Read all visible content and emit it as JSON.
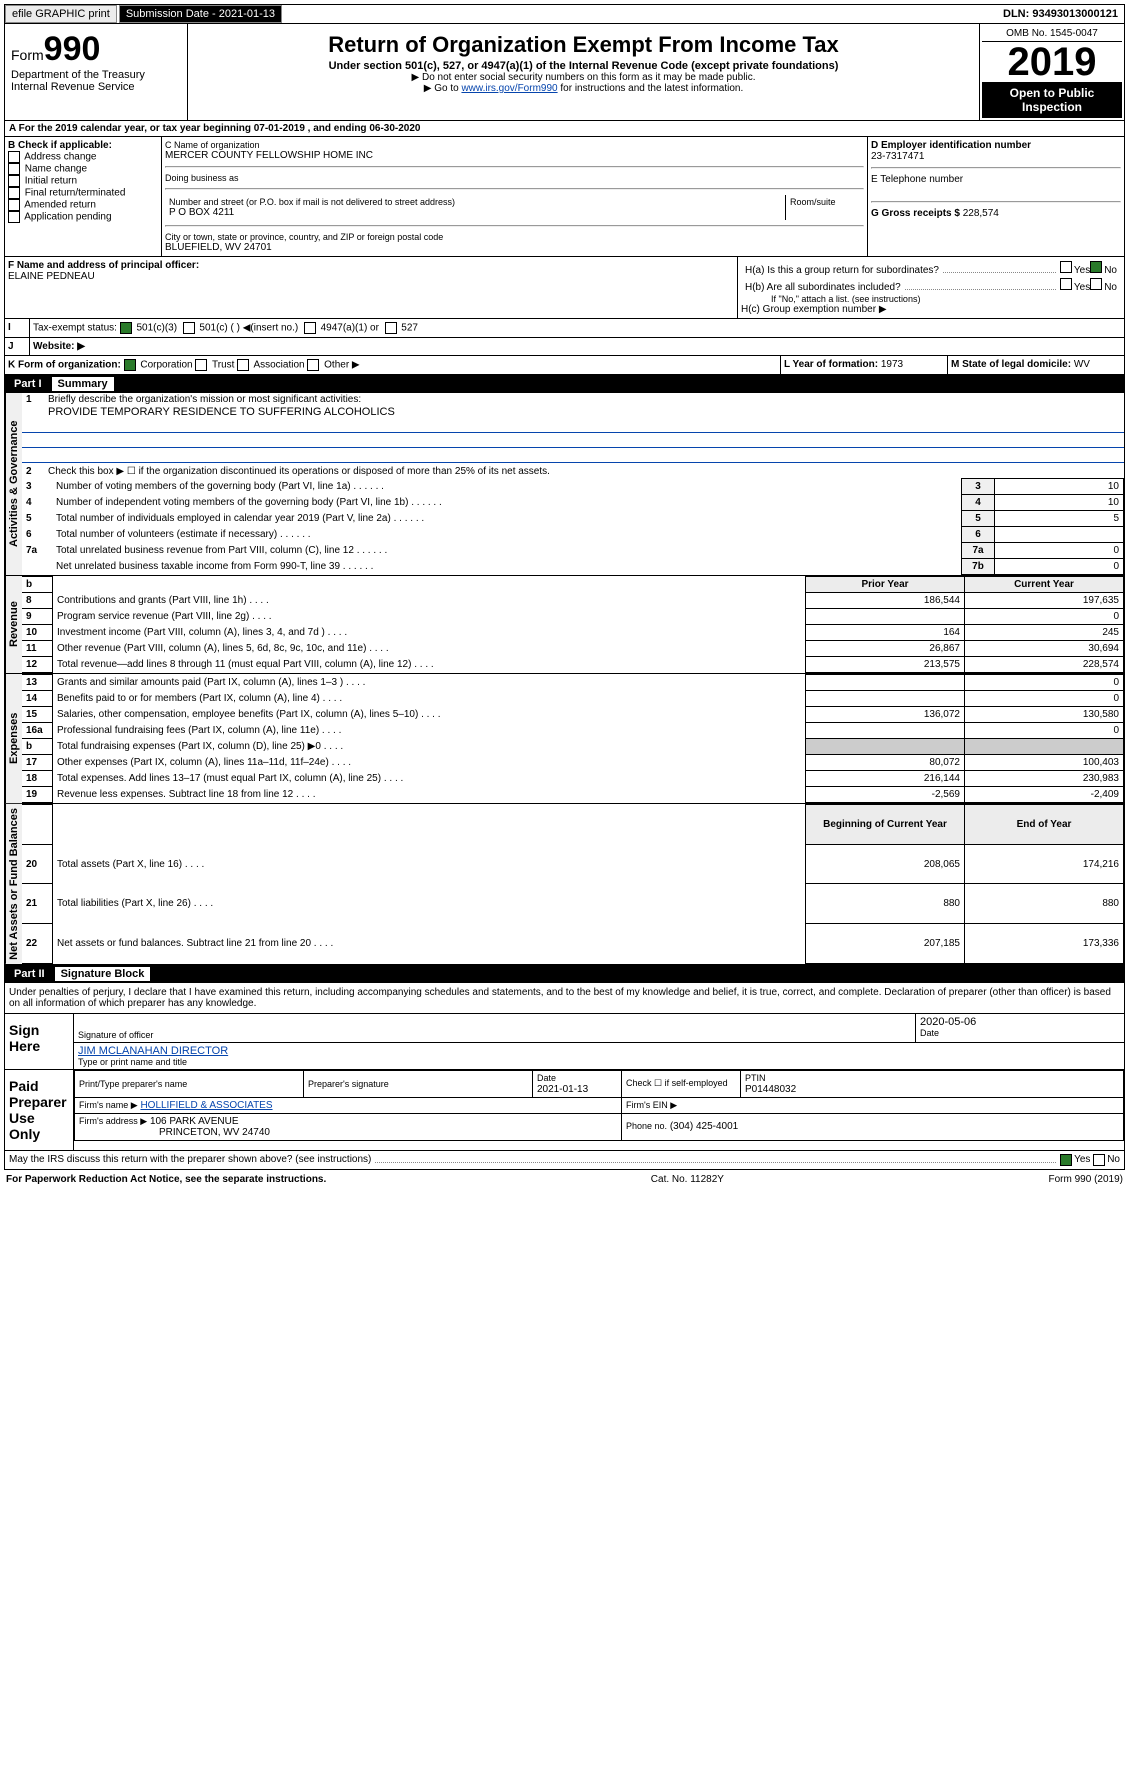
{
  "topbar": {
    "efile": "efile GRAPHIC print",
    "submission": "Submission Date - 2021-01-13",
    "dln": "DLN: 93493013000121"
  },
  "header": {
    "form_label": "Form",
    "form_no": "990",
    "dept": "Department of the Treasury",
    "irs": "Internal Revenue Service",
    "title": "Return of Organization Exempt From Income Tax",
    "sub": "Under section 501(c), 527, or 4947(a)(1) of the Internal Revenue Code (except private foundations)",
    "note1": "▶ Do not enter social security numbers on this form as it may be made public.",
    "note2": "▶ Go to ",
    "note2_link": "www.irs.gov/Form990",
    "note2_tail": " for instructions and the latest information.",
    "omb": "OMB No. 1545-0047",
    "year": "2019",
    "open": "Open to Public Inspection"
  },
  "line_a": "A For the 2019 calendar year, or tax year beginning 07-01-2019    , and ending 06-30-2020",
  "box_b": {
    "title": "B Check if applicable:",
    "items": [
      "Address change",
      "Name change",
      "Initial return",
      "Final return/terminated",
      "Amended return",
      "Application pending"
    ]
  },
  "box_c": {
    "c_label": "C Name of organization",
    "org": "MERCER COUNTY FELLOWSHIP HOME INC",
    "dba_label": "Doing business as",
    "addr_label": "Number and street (or P.O. box if mail is not delivered to street address)",
    "room": "Room/suite",
    "addr": "P O BOX 4211",
    "city_label": "City or town, state or province, country, and ZIP or foreign postal code",
    "city": "BLUEFIELD, WV  24701"
  },
  "box_d": {
    "label": "D Employer identification number",
    "ein": "23-7317471"
  },
  "box_e": {
    "label": "E Telephone number"
  },
  "box_g": {
    "label": "G Gross receipts $",
    "val": "228,574"
  },
  "box_f": {
    "label": "F  Name and address of principal officer:",
    "name": "ELAINE PEDNEAU"
  },
  "box_h": {
    "a": "H(a)  Is this a group return for subordinates?",
    "yes": "Yes",
    "no": "No",
    "b": "H(b)  Are all subordinates included?",
    "b_note": "If \"No,\" attach a list. (see instructions)",
    "c": "H(c)  Group exemption number ▶"
  },
  "box_i": {
    "label": "I",
    "text": "Tax-exempt status:",
    "c3": "501(c)(3)",
    "c": "501(c) (   ) ◀(insert no.)",
    "a1": "4947(a)(1) or",
    "527": "527"
  },
  "box_j": {
    "label": "J",
    "text": "Website: ▶"
  },
  "box_k": {
    "label": "K Form of organization:",
    "corp": "Corporation",
    "trust": "Trust",
    "assoc": "Association",
    "other": "Other ▶"
  },
  "box_l": {
    "label": "L Year of formation:",
    "val": "1973"
  },
  "box_m": {
    "label": "M State of legal domicile:",
    "val": "WV"
  },
  "part1": {
    "label": "Part I",
    "title": "Summary"
  },
  "summary": {
    "l1": "Briefly describe the organization's mission or most significant activities:",
    "l1_text": "PROVIDE TEMPORARY RESIDENCE TO SUFFERING ALCOHOLICS",
    "l2": "Check this box ▶ ☐  if the organization discontinued its operations or disposed of more than 25% of its net assets.",
    "rows": [
      {
        "n": "3",
        "t": "Number of voting members of the governing body (Part VI, line 1a)",
        "b": "3",
        "v": "10"
      },
      {
        "n": "4",
        "t": "Number of independent voting members of the governing body (Part VI, line 1b)",
        "b": "4",
        "v": "10"
      },
      {
        "n": "5",
        "t": "Total number of individuals employed in calendar year 2019 (Part V, line 2a)",
        "b": "5",
        "v": "5"
      },
      {
        "n": "6",
        "t": "Total number of volunteers (estimate if necessary)",
        "b": "6",
        "v": ""
      },
      {
        "n": "7a",
        "t": "Total unrelated business revenue from Part VIII, column (C), line 12",
        "b": "7a",
        "v": "0"
      },
      {
        "n": "",
        "t": "Net unrelated business taxable income from Form 990-T, line 39",
        "b": "7b",
        "v": "0"
      }
    ]
  },
  "fin_header": {
    "b": "b",
    "prior": "Prior Year",
    "curr": "Current Year"
  },
  "revenue": [
    {
      "n": "8",
      "t": "Contributions and grants (Part VIII, line 1h)",
      "p": "186,544",
      "c": "197,635"
    },
    {
      "n": "9",
      "t": "Program service revenue (Part VIII, line 2g)",
      "p": "",
      "c": "0"
    },
    {
      "n": "10",
      "t": "Investment income (Part VIII, column (A), lines 3, 4, and 7d )",
      "p": "164",
      "c": "245"
    },
    {
      "n": "11",
      "t": "Other revenue (Part VIII, column (A), lines 5, 6d, 8c, 9c, 10c, and 11e)",
      "p": "26,867",
      "c": "30,694"
    },
    {
      "n": "12",
      "t": "Total revenue—add lines 8 through 11 (must equal Part VIII, column (A), line 12)",
      "p": "213,575",
      "c": "228,574"
    }
  ],
  "expenses": [
    {
      "n": "13",
      "t": "Grants and similar amounts paid (Part IX, column (A), lines 1–3 )",
      "p": "",
      "c": "0"
    },
    {
      "n": "14",
      "t": "Benefits paid to or for members (Part IX, column (A), line 4)",
      "p": "",
      "c": "0"
    },
    {
      "n": "15",
      "t": "Salaries, other compensation, employee benefits (Part IX, column (A), lines 5–10)",
      "p": "136,072",
      "c": "130,580"
    },
    {
      "n": "16a",
      "t": "Professional fundraising fees (Part IX, column (A), line 11e)",
      "p": "",
      "c": "0"
    },
    {
      "n": "b",
      "t": "Total fundraising expenses (Part IX, column (D), line 25) ▶0",
      "p": "—",
      "c": "—"
    },
    {
      "n": "17",
      "t": "Other expenses (Part IX, column (A), lines 11a–11d, 11f–24e)",
      "p": "80,072",
      "c": "100,403"
    },
    {
      "n": "18",
      "t": "Total expenses. Add lines 13–17 (must equal Part IX, column (A), line 25)",
      "p": "216,144",
      "c": "230,983"
    },
    {
      "n": "19",
      "t": "Revenue less expenses. Subtract line 18 from line 12",
      "p": "-2,569",
      "c": "-2,409"
    }
  ],
  "net_header": {
    "prior": "Beginning of Current Year",
    "curr": "End of Year"
  },
  "netassets": [
    {
      "n": "20",
      "t": "Total assets (Part X, line 16)",
      "p": "208,065",
      "c": "174,216"
    },
    {
      "n": "21",
      "t": "Total liabilities (Part X, line 26)",
      "p": "880",
      "c": "880"
    },
    {
      "n": "22",
      "t": "Net assets or fund balances. Subtract line 21 from line 20",
      "p": "207,185",
      "c": "173,336"
    }
  ],
  "part2": {
    "label": "Part II",
    "title": "Signature Block"
  },
  "sig": {
    "decl": "Under penalties of perjury, I declare that I have examined this return, including accompanying schedules and statements, and to the best of my knowledge and belief, it is true, correct, and complete. Declaration of preparer (other than officer) is based on all information of which preparer has any knowledge.",
    "sign_here": "Sign Here",
    "sig_officer": "Signature of officer",
    "date": "2020-05-06",
    "date_lbl": "Date",
    "name": "JIM MCLANAHAN  DIRECTOR",
    "name_lbl": "Type or print name and title",
    "paid": "Paid Preparer Use Only",
    "prep_name_lbl": "Print/Type preparer's name",
    "prep_sig_lbl": "Preparer's signature",
    "prep_date_lbl": "Date",
    "prep_date": "2021-01-13",
    "check_self": "Check ☐ if self-employed",
    "ptin_lbl": "PTIN",
    "ptin": "P01448032",
    "firm_name_lbl": "Firm's name   ▶",
    "firm": "HOLLIFIELD & ASSOCIATES",
    "firm_ein_lbl": "Firm's EIN ▶",
    "firm_addr_lbl": "Firm's address ▶",
    "firm_addr": "106 PARK AVENUE",
    "firm_city": "PRINCETON, WV  24740",
    "phone_lbl": "Phone no.",
    "phone": "(304) 425-4001"
  },
  "bottom": {
    "discuss": "May the IRS discuss this return with the preparer shown above? (see instructions)",
    "yes": "Yes",
    "no": "No",
    "paperwork": "For Paperwork Reduction Act Notice, see the separate instructions.",
    "cat": "Cat. No. 11282Y",
    "form": "Form 990 (2019)"
  },
  "sides": {
    "ag": "Activities & Governance",
    "rev": "Revenue",
    "exp": "Expenses",
    "net": "Net Assets or Fund Balances"
  }
}
